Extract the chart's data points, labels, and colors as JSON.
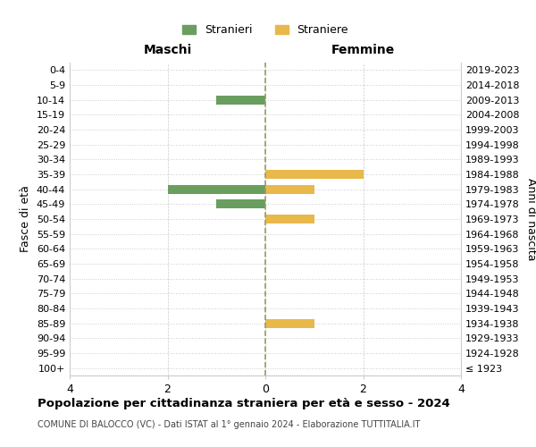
{
  "age_groups": [
    "100+",
    "95-99",
    "90-94",
    "85-89",
    "80-84",
    "75-79",
    "70-74",
    "65-69",
    "60-64",
    "55-59",
    "50-54",
    "45-49",
    "40-44",
    "35-39",
    "30-34",
    "25-29",
    "20-24",
    "15-19",
    "10-14",
    "5-9",
    "0-4"
  ],
  "birth_years": [
    "≤ 1923",
    "1924-1928",
    "1929-1933",
    "1934-1938",
    "1939-1943",
    "1944-1948",
    "1949-1953",
    "1954-1958",
    "1959-1963",
    "1964-1968",
    "1969-1973",
    "1974-1978",
    "1979-1983",
    "1984-1988",
    "1989-1993",
    "1994-1998",
    "1999-2003",
    "2004-2008",
    "2009-2013",
    "2014-2018",
    "2019-2023"
  ],
  "males": [
    0,
    0,
    0,
    0,
    0,
    0,
    0,
    0,
    0,
    0,
    0,
    -1,
    -2,
    0,
    0,
    0,
    0,
    0,
    -1,
    0,
    0
  ],
  "females": [
    0,
    0,
    0,
    1,
    0,
    0,
    0,
    0,
    0,
    0,
    1,
    0,
    1,
    2,
    0,
    0,
    0,
    0,
    0,
    0,
    0
  ],
  "male_color": "#6a9e5e",
  "female_color": "#e8b84b",
  "title": "Popolazione per cittadinanza straniera per età e sesso - 2024",
  "subtitle": "COMUNE DI BALOCCO (VC) - Dati ISTAT al 1° gennaio 2024 - Elaborazione TUTTITALIA.IT",
  "header_left": "Maschi",
  "header_right": "Femmine",
  "ylabel_left": "Fasce di età",
  "ylabel_right": "Anni di nascita",
  "legend_male": "Stranieri",
  "legend_female": "Straniere",
  "xlim": [
    -4,
    4
  ],
  "xticks": [
    -4,
    -2,
    0,
    2,
    4
  ],
  "xticklabels": [
    "4",
    "2",
    "0",
    "2",
    "4"
  ],
  "background_color": "#ffffff",
  "grid_color": "#cccccc",
  "zeroline_color": "#999966"
}
